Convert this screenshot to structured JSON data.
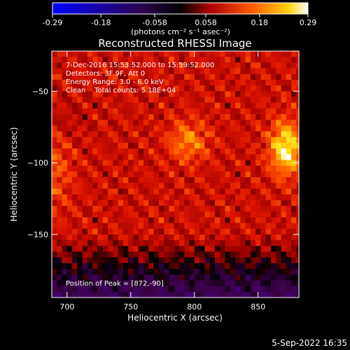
{
  "chart_data": {
    "type": "heatmap",
    "title": "Reconstructed RHESSI Image",
    "xlabel": "Heliocentric X (arcsec)",
    "ylabel": "Heliocentric Y (arcsec)",
    "xlim": [
      688,
      882
    ],
    "ylim": [
      -194,
      -22
    ],
    "x_ticks": [
      700,
      750,
      800,
      850
    ],
    "y_ticks": [
      -50,
      -100,
      -150
    ],
    "colorbar": {
      "min": -0.29,
      "max": 0.29,
      "tick_values": [
        -0.29,
        -0.18,
        -0.058,
        0.058,
        0.18,
        0.29
      ],
      "tick_labels": [
        "-0.29",
        "-0.18",
        "-0.058",
        "0.058",
        "0.18",
        "0.29"
      ],
      "unit_label": "(photons cm⁻² s⁻¹ asec⁻²)",
      "colormap": [
        "#0000ff",
        "#1a0020",
        "#000000",
        "#c00000",
        "#ff5000",
        "#ffc000",
        "#ffffff"
      ]
    },
    "info_lines": [
      "7-Dec-2016 15:53:52.000 to 15:59:52.000",
      "Detectors: 3F 9F, Att 0",
      "Energy Range: 3.0 - 6.0 keV",
      "Clean    Total counts: 5.18E+04"
    ],
    "peak_label": "Position of Peak = [872,-90]",
    "peak": {
      "x": 872,
      "y": -90
    }
  },
  "footer": {
    "timestamp": "5-Sep-2022 16:35"
  }
}
